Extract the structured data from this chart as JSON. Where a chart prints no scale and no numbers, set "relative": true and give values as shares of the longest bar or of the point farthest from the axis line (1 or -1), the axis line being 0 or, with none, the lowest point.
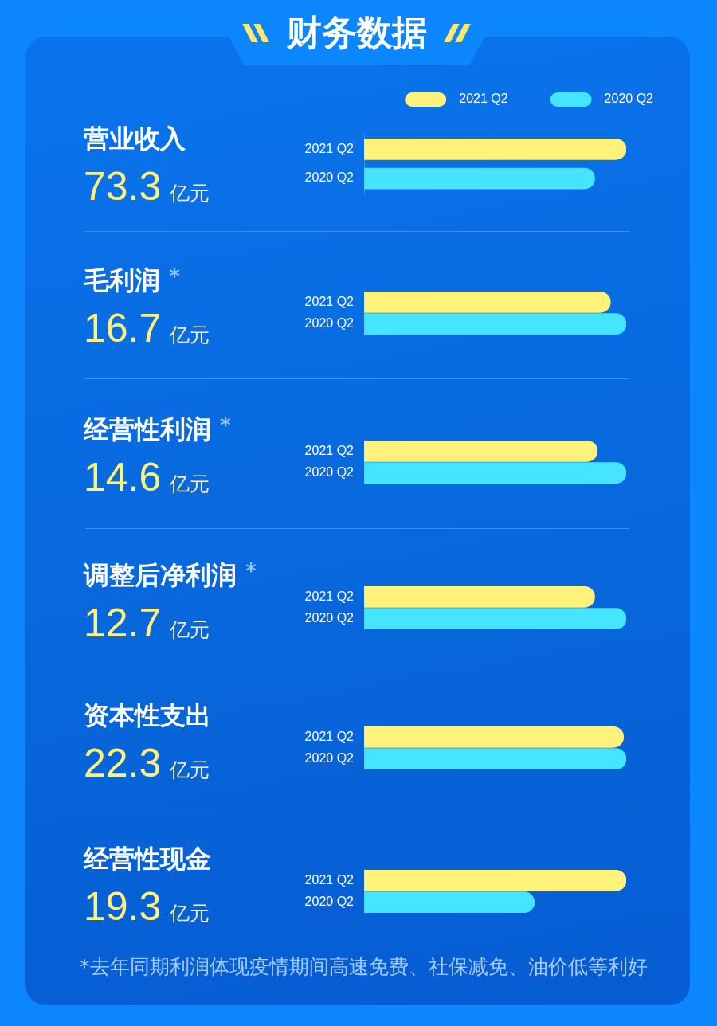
{
  "chart_data": [
    {
      "type": "other",
      "title": "财务数据"
    },
    {
      "type": "bar",
      "orientation": "horizontal",
      "relative": true,
      "title": "营业收入",
      "subtitle": "73.3 亿元",
      "categories": [
        "2021 Q2",
        "2020 Q2"
      ],
      "series": [
        {
          "name": "2021 Q2",
          "color": "#fff27a",
          "values": [
            1,
            null
          ]
        },
        {
          "name": "2020 Q2",
          "color": "#45e4ff",
          "values": [
            null,
            0.88
          ]
        }
      ],
      "legend": "top right"
    },
    {
      "type": "bar",
      "orientation": "horizontal",
      "relative": true,
      "title": "毛利润 *",
      "subtitle": "16.7 亿元",
      "categories": [
        "2021 Q2",
        "2020 Q2"
      ],
      "series": [
        {
          "color": "#fff27a",
          "values": [
            0.94,
            null
          ]
        },
        {
          "color": "#45e4ff",
          "values": [
            null,
            1
          ]
        }
      ]
    },
    {
      "type": "bar",
      "orientation": "horizontal",
      "relative": true,
      "title": "经营性利润 *",
      "subtitle": "14.6 亿元",
      "categories": [
        "2021 Q2",
        "2020 Q2"
      ],
      "series": [
        {
          "color": "#fff27a",
          "values": [
            0.89,
            null
          ]
        },
        {
          "color": "#45e4ff",
          "values": [
            null,
            1
          ]
        }
      ]
    },
    {
      "type": "bar",
      "orientation": "horizontal",
      "relative": true,
      "title": "调整后净利润 *",
      "subtitle": "12.7 亿元",
      "categories": [
        "2021 Q2",
        "2020 Q2"
      ],
      "series": [
        {
          "color": "#fff27a",
          "values": [
            0.88,
            null
          ]
        },
        {
          "color": "#45e4ff",
          "values": [
            null,
            1
          ]
        }
      ]
    },
    {
      "type": "bar",
      "orientation": "horizontal",
      "relative": true,
      "title": "资本性支出",
      "subtitle": "22.3 亿元",
      "categories": [
        "2021 Q2",
        "2020 Q2"
      ],
      "series": [
        {
          "color": "#fff27a",
          "values": [
            0.99,
            null
          ]
        },
        {
          "color": "#45e4ff",
          "values": [
            null,
            1
          ]
        }
      ]
    },
    {
      "type": "bar",
      "orientation": "horizontal",
      "relative": true,
      "title": "经营性现金",
      "subtitle": "19.3 亿元",
      "categories": [
        "2021 Q2",
        "2020 Q2"
      ],
      "series": [
        {
          "color": "#fff27a",
          "values": [
            1,
            null
          ]
        },
        {
          "color": "#45e4ff",
          "values": [
            null,
            0.65
          ]
        }
      ],
      "annotations": [
        "*去年同期利润体现疫情期间高速免费、社保减免、油价低等利好"
      ]
    }
  ]
}
